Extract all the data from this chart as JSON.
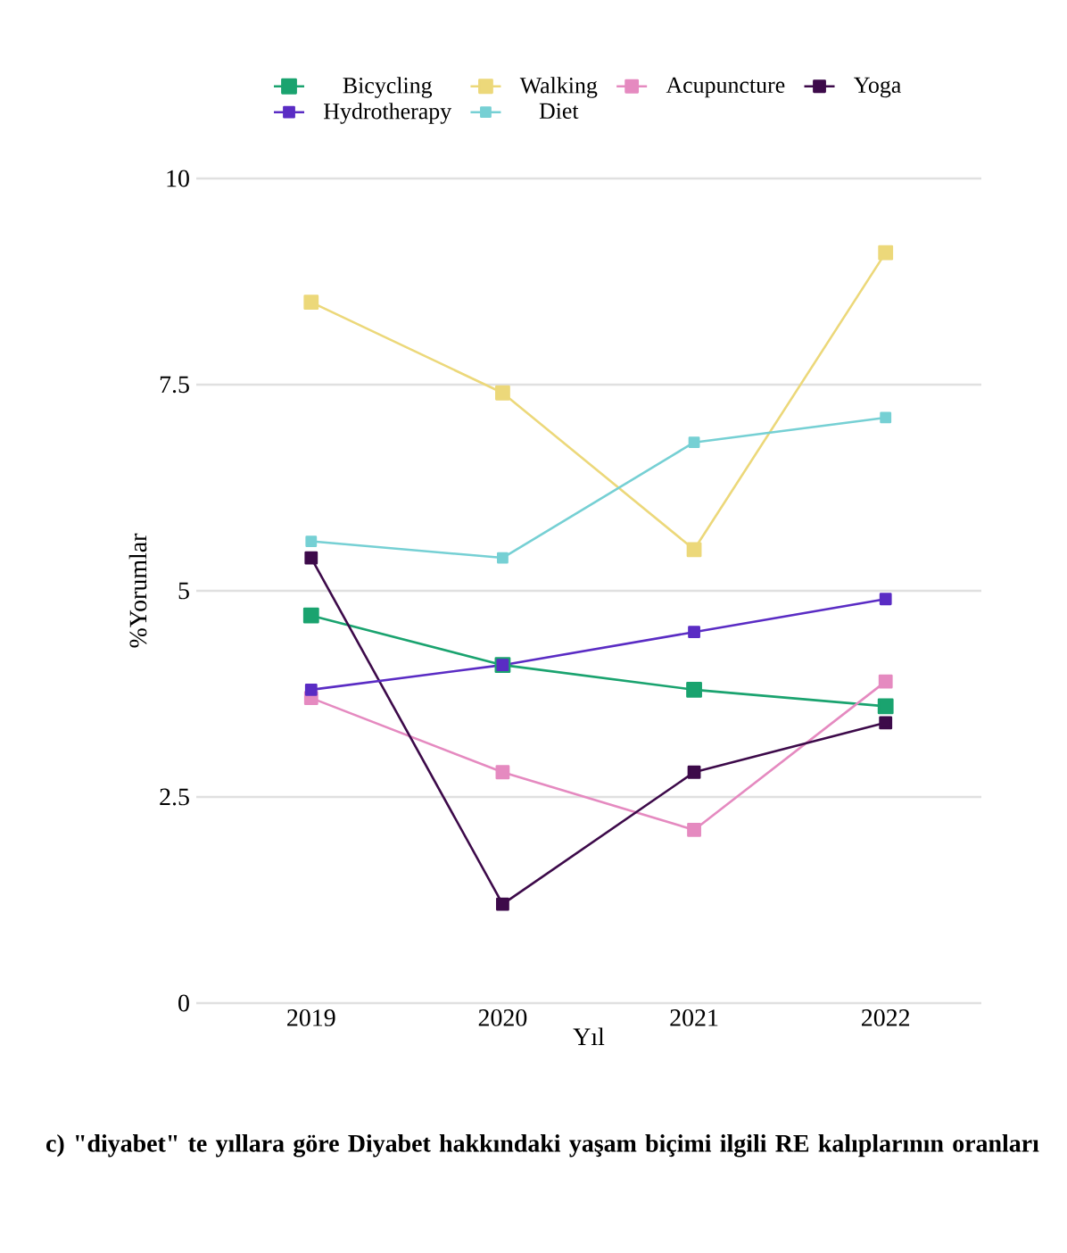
{
  "chart_data": {
    "type": "line",
    "xlabel": "Yıl",
    "ylabel": "%Yorumlar",
    "categories": [
      "2019",
      "2020",
      "2021",
      "2022"
    ],
    "series": [
      {
        "name": "Bicycling",
        "color": "#1aa36f",
        "values": [
          4.7,
          4.1,
          3.8,
          3.6
        ]
      },
      {
        "name": "Walking",
        "color": "#ecd87a",
        "values": [
          8.5,
          7.4,
          5.5,
          9.1
        ]
      },
      {
        "name": "Acupuncture",
        "color": "#e58ac0",
        "values": [
          3.7,
          2.8,
          2.1,
          3.9
        ]
      },
      {
        "name": "Yoga",
        "color": "#3d0a4a",
        "values": [
          5.4,
          1.2,
          2.8,
          3.4
        ]
      },
      {
        "name": "Hydrotherapy",
        "color": "#5a2cc4",
        "values": [
          3.8,
          4.1,
          4.5,
          4.9
        ]
      },
      {
        "name": "Diet",
        "color": "#76d0d4",
        "values": [
          5.6,
          5.4,
          6.8,
          7.1
        ]
      }
    ],
    "ylim": [
      0,
      10
    ],
    "yticks": [
      0,
      2.5,
      5,
      7.5,
      10
    ],
    "grid": "y",
    "legend": "top",
    "marker": "square",
    "annotations": [
      "c) \"diyabet\" te yıllara göre Diyabet hakkındaki yaşam biçimi ilgili RE kalıplarının oranları"
    ]
  }
}
